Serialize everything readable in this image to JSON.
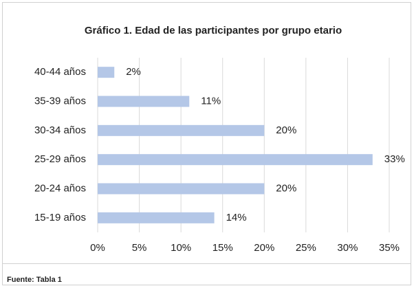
{
  "chart_data": {
    "type": "barh",
    "title": "Gráfico 1. Edad de las participantes por grupo etario",
    "categories": [
      "40-44 años",
      "35-39 años",
      "30-34 años",
      "25-29 años",
      "20-24 años",
      "15-19 años"
    ],
    "values": [
      2,
      11,
      20,
      33,
      20,
      14
    ],
    "value_labels": [
      "2%",
      "11%",
      "20%",
      "33%",
      "20%",
      "14%"
    ],
    "color": "#b4c7e7",
    "xlim": [
      0,
      35
    ],
    "xticks": [
      {
        "value": 0,
        "label": "0%"
      },
      {
        "value": 5,
        "label": "5%"
      },
      {
        "value": 10,
        "label": "10%"
      },
      {
        "value": 15,
        "label": "15%"
      },
      {
        "value": 20,
        "label": "20%"
      },
      {
        "value": 25,
        "label": "25%"
      },
      {
        "value": 30,
        "label": "30%"
      },
      {
        "value": 35,
        "label": "35%"
      }
    ],
    "grid": true,
    "source": "Fuente: Tabla 1"
  }
}
